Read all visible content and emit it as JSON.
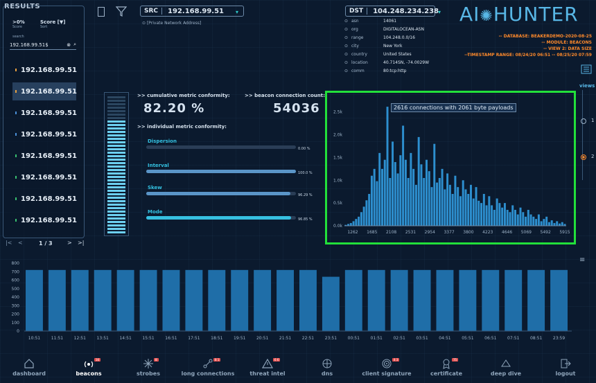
{
  "results": {
    "title": "RESULTS",
    "filter_label": ">0%",
    "filter_sub": "Score",
    "sort_label": "Score [▼]",
    "sort_sub": "Sort",
    "search_label": "search",
    "search_value": "192.168.99.51$",
    "items": [
      {
        "ip": "192.168.99.51",
        "dot": "#e8a040"
      },
      {
        "ip": "192.168.99.51",
        "dot": "#e8a040"
      },
      {
        "ip": "192.168.99.51",
        "dot": "#4a90d9"
      },
      {
        "ip": "192.168.99.51",
        "dot": "#4a90d9"
      },
      {
        "ip": "192.168.99.51",
        "dot": "#38c070"
      },
      {
        "ip": "192.168.99.51",
        "dot": "#38c070"
      },
      {
        "ip": "192.168.99.51",
        "dot": "#38c070"
      },
      {
        "ip": "192.168.99.51",
        "dot": "#38c070"
      }
    ],
    "pagination": "1 / 3"
  },
  "src": {
    "tag": "SRC",
    "ip": "192.168.99.51",
    "note": "[Private Network Address]"
  },
  "dst": {
    "tag": "DST",
    "ip": "104.248.234.238",
    "rows": [
      {
        "k": "asn",
        "v": "14061"
      },
      {
        "k": "org",
        "v": "DIGITALOCEAN-ASN"
      },
      {
        "k": "range",
        "v": "104.248.0.0/16"
      },
      {
        "k": "city",
        "v": "New York"
      },
      {
        "k": "country",
        "v": "United States"
      },
      {
        "k": "location",
        "v": "40.714SN, -74.0029W"
      },
      {
        "k": "comm",
        "v": "80:tcp:http"
      }
    ]
  },
  "logo": {
    "left": "AI",
    "right": "HUNTER"
  },
  "db_info": [
    "-- DATABASE: BEAKERDEMO-2020-08-25",
    "-- MODULE: BEACONS",
    "-- VIEW 2: DATA SIZE",
    "--TIMESTAMP RANGE: 08/24/20 06:51 -- 08/25/20 07:59"
  ],
  "views": {
    "label": "views",
    "opt1": "1",
    "opt2": "2"
  },
  "metrics": {
    "cumulative_label": ">> cumulative metric conformity:",
    "cumulative_value": "82.20 %",
    "count_label": ">> beacon connection count:",
    "count_value": "54036",
    "individual_label": ">> individual metric conformity:",
    "items": [
      {
        "name": "Dispersion",
        "value": "0.00 %",
        "fill": 0.0
      },
      {
        "name": "Interval",
        "value": "100.0 %",
        "fill": 1.0
      },
      {
        "name": "Skew",
        "value": "96.29 %",
        "fill": 0.963
      },
      {
        "name": "Mode",
        "value": "96.85 %",
        "fill": 0.968
      }
    ],
    "meter_fill": 0.822
  },
  "chart_data": [
    {
      "type": "bar",
      "title": "",
      "tooltip": "2616 connections with 2061 byte payloads",
      "x_ticks": [
        "1262",
        "1685",
        "2108",
        "2531",
        "2954",
        "3377",
        "3800",
        "4223",
        "4646",
        "5069",
        "5492",
        "5915"
      ],
      "y_ticks": [
        "0.0k",
        "0.5k",
        "1.0k",
        "1.5k",
        "2.0k",
        "2.5k"
      ],
      "ylim": [
        0,
        2800
      ],
      "values": [
        20,
        40,
        60,
        100,
        150,
        200,
        300,
        420,
        560,
        700,
        1100,
        1250,
        980,
        1600,
        1250,
        1450,
        2616,
        1050,
        1850,
        1400,
        1150,
        1550,
        2200,
        1450,
        1050,
        1600,
        1250,
        900,
        1950,
        1350,
        1050,
        1450,
        1200,
        850,
        1800,
        950,
        1050,
        1250,
        800,
        1150,
        900,
        700,
        1100,
        850,
        650,
        1000,
        800,
        700,
        900,
        600,
        850,
        550,
        500,
        700,
        450,
        650,
        450,
        350,
        600,
        500,
        400,
        500,
        350,
        300,
        450,
        350,
        250,
        400,
        300,
        200,
        350,
        250,
        200,
        150,
        250,
        100,
        150,
        200,
        80,
        120,
        60,
        100,
        50,
        80,
        40
      ]
    },
    {
      "type": "bar",
      "title": "",
      "y_ticks": [
        "0",
        "100",
        "200",
        "300",
        "400",
        "500",
        "600",
        "700",
        "800"
      ],
      "ylim": [
        0,
        800
      ],
      "categories": [
        "10:51",
        "11:51",
        "12:51",
        "13:51",
        "14:51",
        "15:51",
        "16:51",
        "17:51",
        "18:51",
        "19:51",
        "20:51",
        "21:51",
        "22:51",
        "23:51",
        "00:51",
        "01:51",
        "02:51",
        "03:51",
        "04:51",
        "05:51",
        "06:51",
        "07:51",
        "08:51",
        "23:59"
      ],
      "values": [
        720,
        720,
        720,
        720,
        720,
        720,
        720,
        720,
        720,
        720,
        720,
        720,
        720,
        640,
        720,
        720,
        720,
        720,
        720,
        720,
        720,
        720,
        720,
        720
      ]
    }
  ],
  "nav": [
    {
      "label": "dashboard",
      "icon": "home-icon",
      "badge": ""
    },
    {
      "label": "beacons",
      "icon": "beacon-icon",
      "badge": "16"
    },
    {
      "label": "strobes",
      "icon": "strobe-icon",
      "badge": "8"
    },
    {
      "label": "long connections",
      "icon": "link-icon",
      "badge": "8 1"
    },
    {
      "label": "threat intel",
      "icon": "warning-icon",
      "badge": "6 6"
    },
    {
      "label": "dns",
      "icon": "dns-icon",
      "badge": ""
    },
    {
      "label": "client signature",
      "icon": "fingerprint-icon",
      "badge": "4 3"
    },
    {
      "label": "certificate",
      "icon": "certificate-icon",
      "badge": "75"
    },
    {
      "label": "deep dive",
      "icon": "deep-dive-icon",
      "badge": ""
    },
    {
      "label": "logout",
      "icon": "logout-icon",
      "badge": ""
    }
  ]
}
